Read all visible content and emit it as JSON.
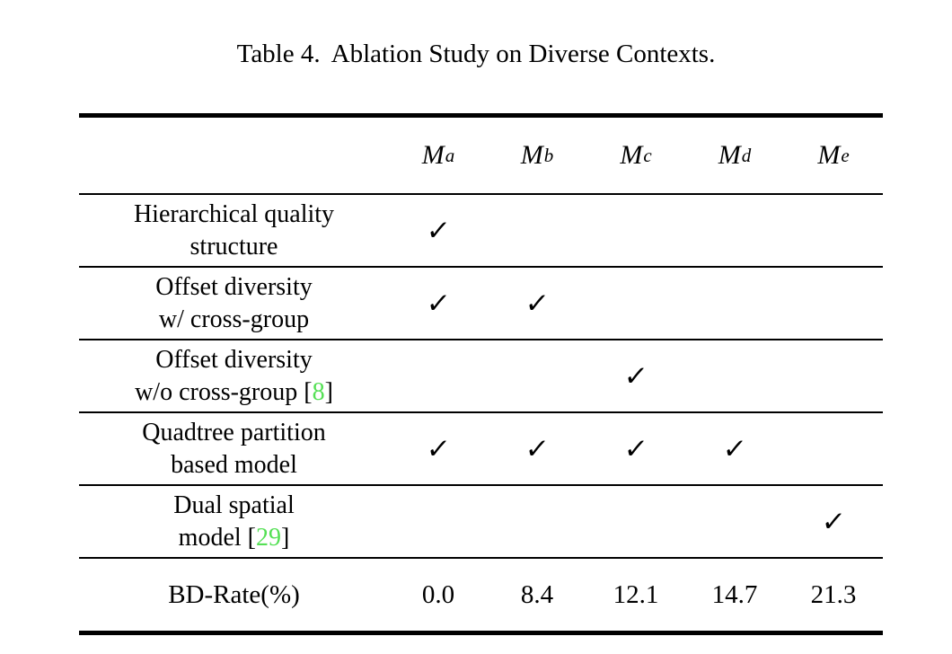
{
  "caption": {
    "label": "Table 4.",
    "text": "Ablation Study on Diverse Contexts."
  },
  "colors": {
    "background": "#FFFFFF",
    "text": "#000000",
    "rule": "#000000",
    "citation_green": "#55E055"
  },
  "table": {
    "columns": [
      {
        "base": "M",
        "sub": "a"
      },
      {
        "base": "M",
        "sub": "b"
      },
      {
        "base": "M",
        "sub": "c"
      },
      {
        "base": "M",
        "sub": "d"
      },
      {
        "base": "M",
        "sub": "e"
      }
    ],
    "rows": [
      {
        "line1": "Hierarchical quality",
        "line2": "structure",
        "checks": [
          "✓",
          "",
          "",
          "",
          ""
        ]
      },
      {
        "line1": "Offset diversity",
        "line2": "w/ cross-group",
        "checks": [
          "✓",
          "✓",
          "",
          "",
          ""
        ]
      },
      {
        "line1": "Offset diversity",
        "line2": "w/o cross-group",
        "cite": {
          "open": "[",
          "num": "8",
          "close": "]"
        },
        "checks": [
          "",
          "",
          "✓",
          "",
          ""
        ]
      },
      {
        "line1": "Quadtree partition",
        "line2": "based model",
        "checks": [
          "✓",
          "✓",
          "✓",
          "✓",
          ""
        ]
      },
      {
        "line1": "Dual spatial",
        "line2": "model",
        "cite": {
          "open": "[",
          "num": "29",
          "close": "]"
        },
        "checks": [
          "",
          "",
          "",
          "",
          "✓"
        ]
      }
    ],
    "footer": {
      "label": "BD-Rate(%)",
      "values": [
        "0.0",
        "8.4",
        "12.1",
        "14.7",
        "21.3"
      ]
    }
  }
}
